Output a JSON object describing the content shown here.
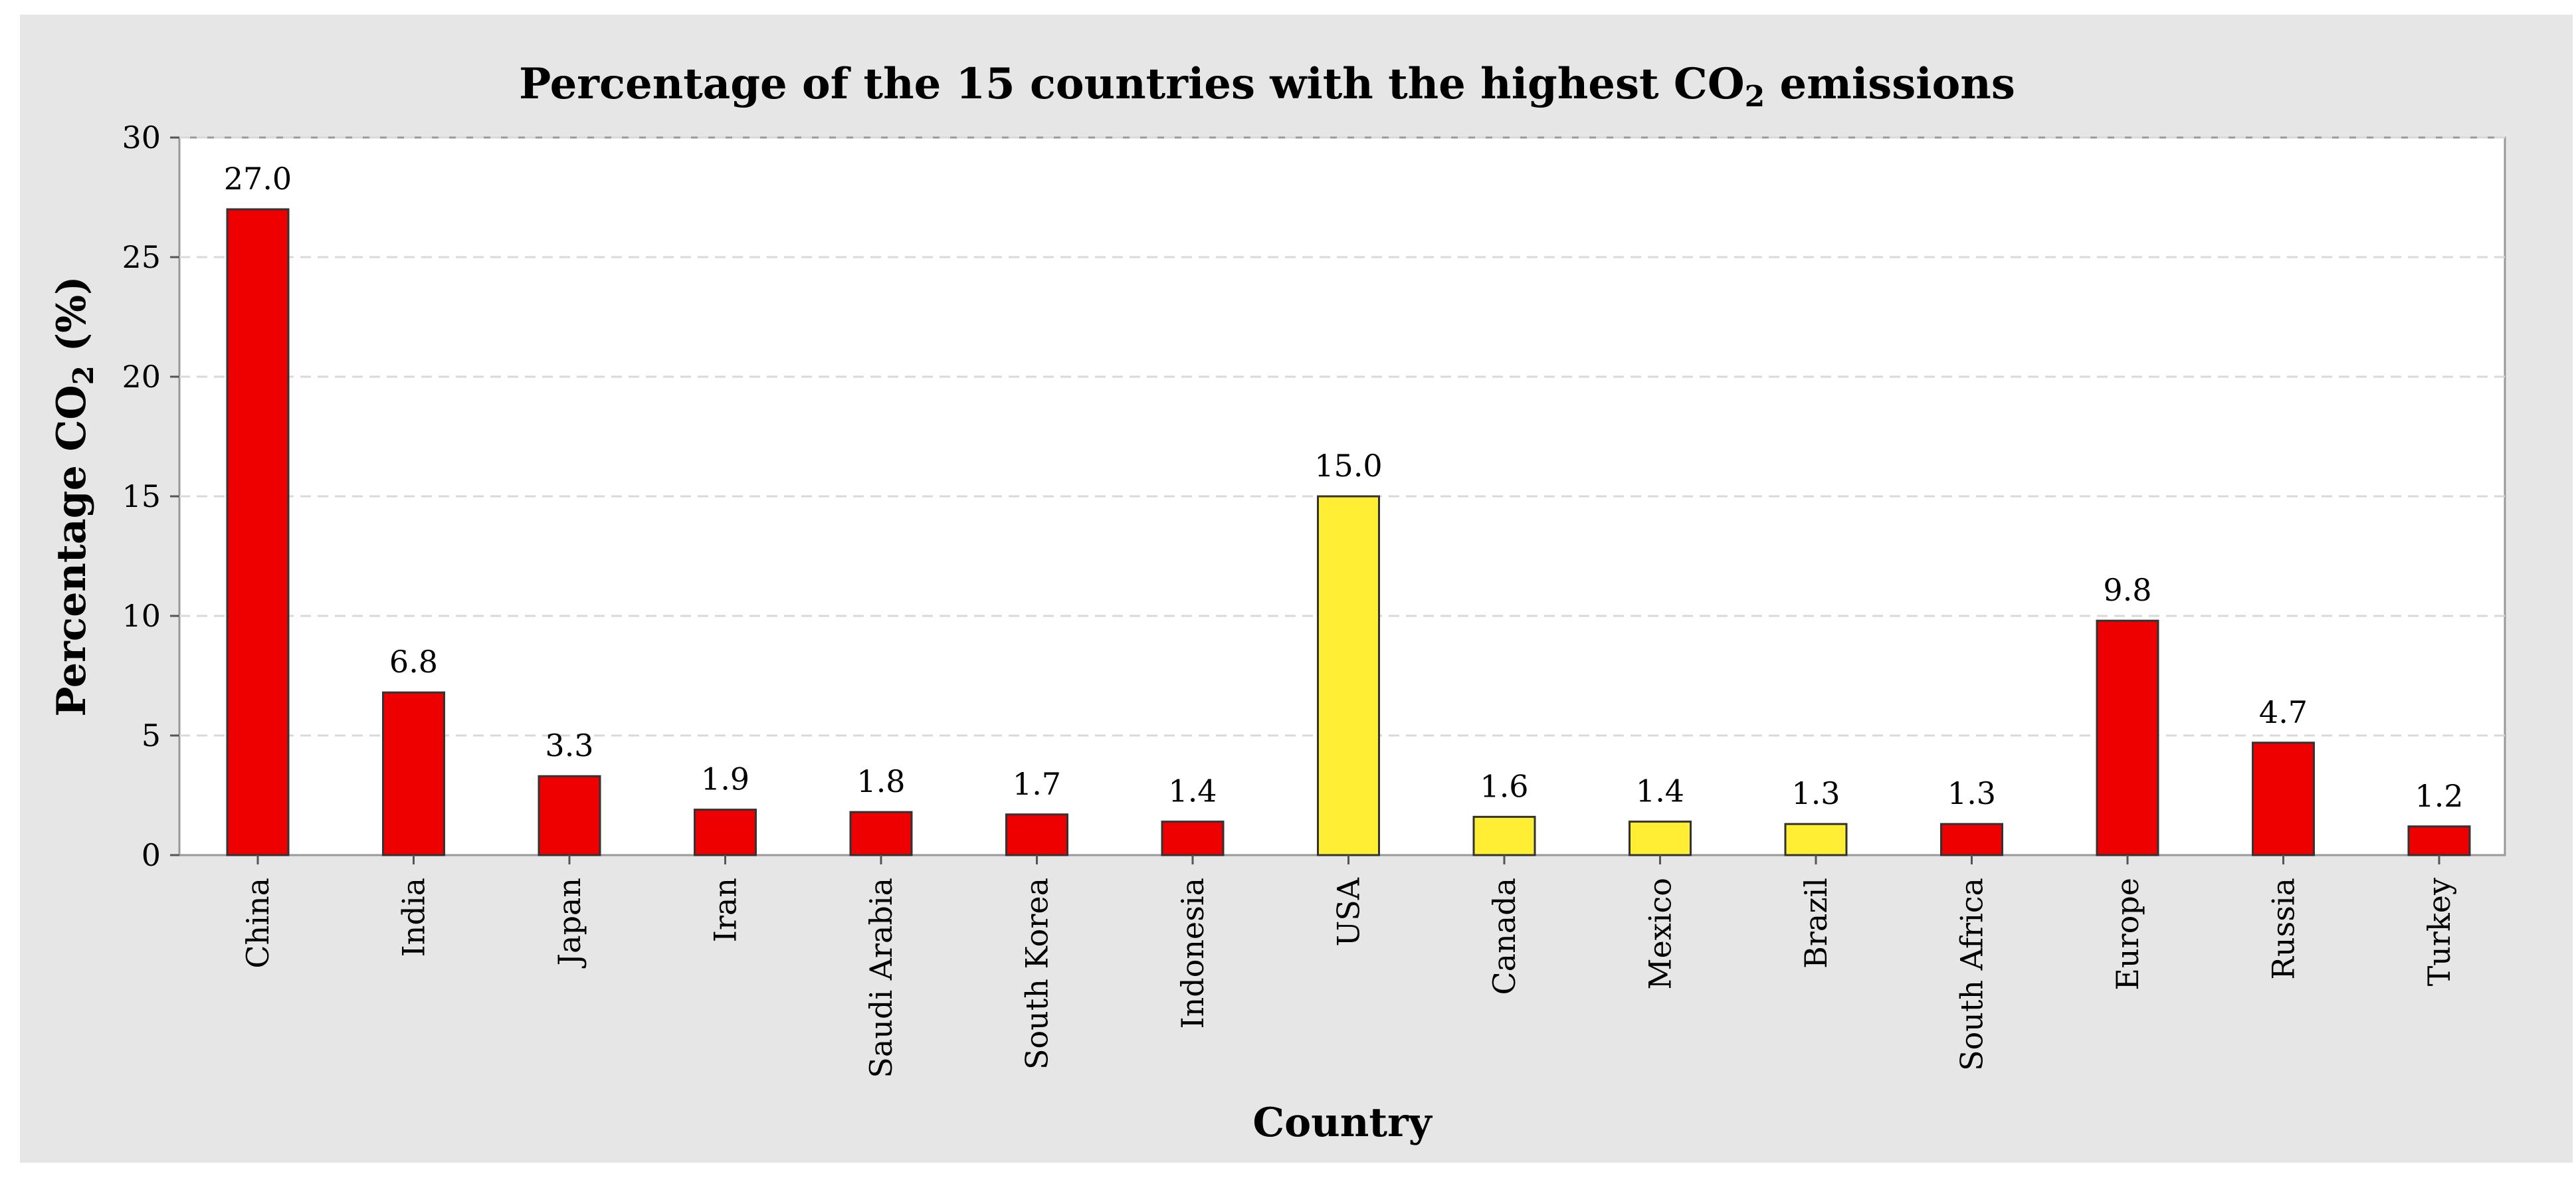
{
  "chart_data": {
    "type": "bar",
    "title": {
      "prefix": "Percentage of the 15 countries with the highest CO",
      "subscript": "2",
      "suffix": " emissions"
    },
    "xlabel": "Country",
    "ylabel": {
      "prefix": "Percentage CO",
      "subscript": "2",
      "suffix": " (%)"
    },
    "ylim": [
      0,
      30
    ],
    "yticks": [
      0,
      5,
      10,
      15,
      20,
      25,
      30
    ],
    "grid": "horizontal-dashed",
    "legend": "none",
    "categories": [
      "China",
      "India",
      "Japan",
      "Iran",
      "Saudi Arabia",
      "South Korea",
      "Indonesia",
      "USA",
      "Canada",
      "Mexico",
      "Brazil",
      "South Africa",
      "Europe",
      "Russia",
      "Turkey"
    ],
    "values": [
      27.0,
      6.8,
      3.3,
      1.9,
      1.8,
      1.7,
      1.4,
      15.0,
      1.6,
      1.4,
      1.3,
      1.3,
      9.8,
      4.7,
      1.2
    ],
    "data_labels": [
      "27.0",
      "6.8",
      "3.3",
      "1.9",
      "1.8",
      "1.7",
      "1.4",
      "15.0",
      "1.6",
      "1.4",
      "1.3",
      "1.3",
      "9.8",
      "4.7",
      "1.2"
    ],
    "bar_colors": [
      "#ee0000",
      "#ee0000",
      "#ee0000",
      "#ee0000",
      "#ee0000",
      "#ee0000",
      "#ee0000",
      "#ffee33",
      "#ffee33",
      "#ffee33",
      "#ffee33",
      "#ee0000",
      "#ee0000",
      "#ee0000",
      "#ee0000"
    ],
    "colors": {
      "background": "#e6e6e6",
      "plot_background": "#ffffff",
      "gridline": "#d9d9d9",
      "bar_outline": "#333333"
    }
  }
}
